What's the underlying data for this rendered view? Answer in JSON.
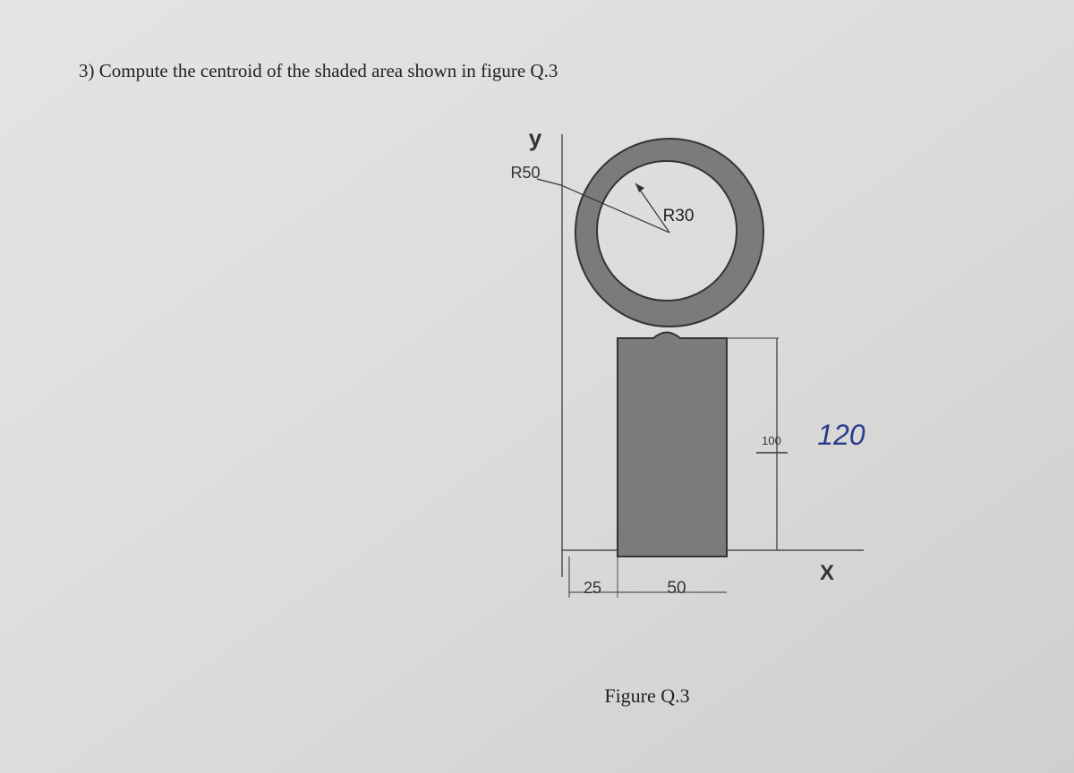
{
  "question": "3) Compute the centroid of the shaded area shown in figure Q.3",
  "figure": {
    "y_axis_label": "y",
    "x_axis_label": "X",
    "outer_radius_label": "R50",
    "inner_radius_label": "R30",
    "height_label": "100",
    "height_correction": "120",
    "offset_label": "25",
    "width_label": "50"
  },
  "caption": "Figure Q.3"
}
